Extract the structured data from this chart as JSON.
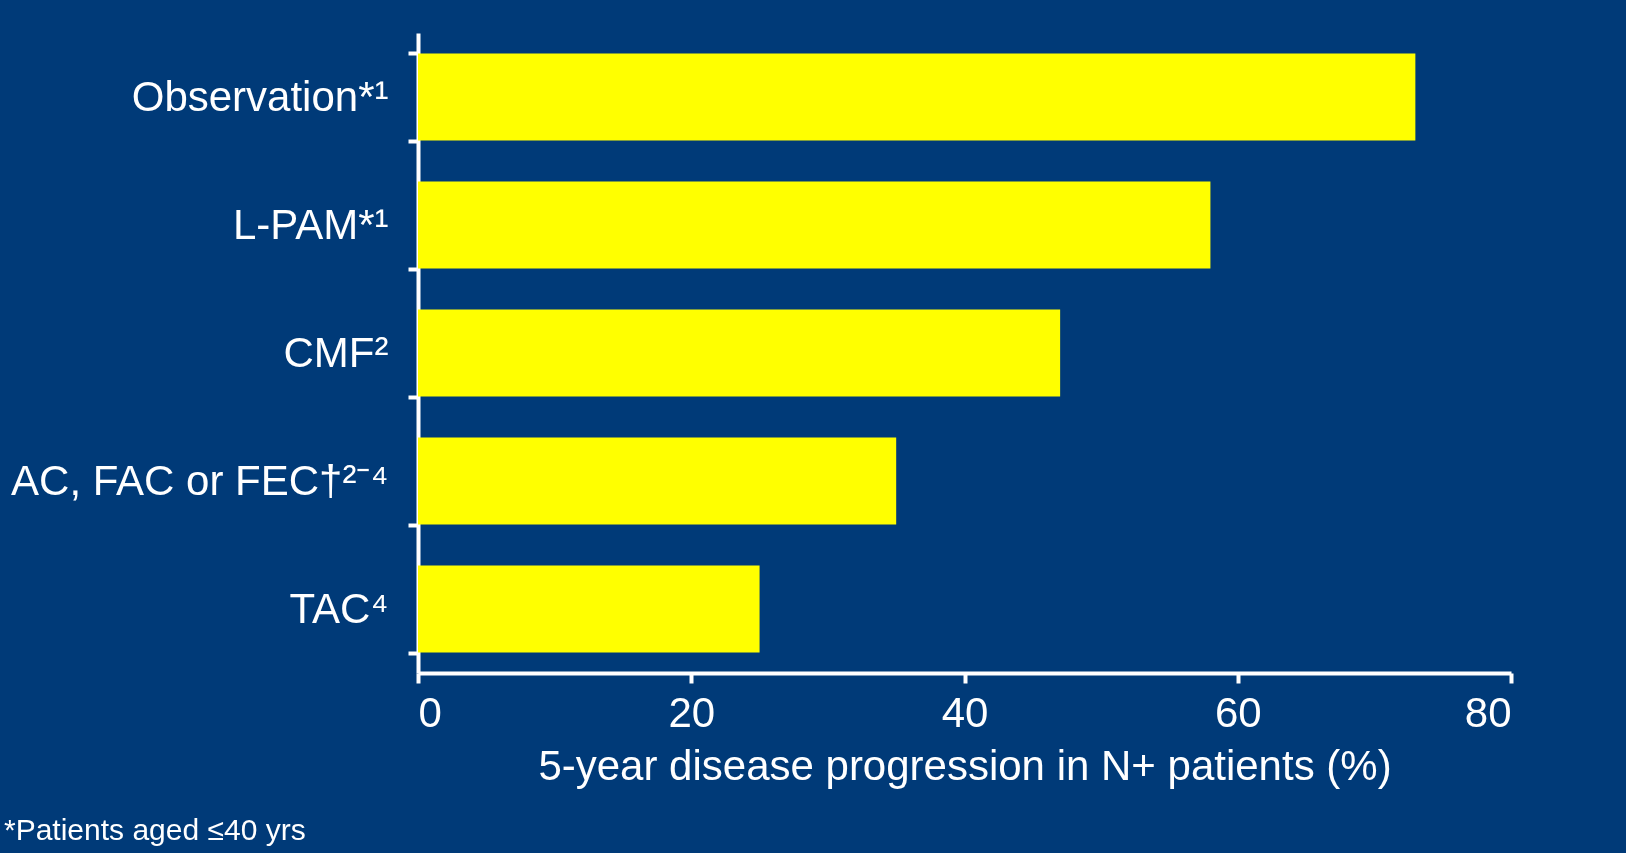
{
  "chart_data": {
    "type": "bar",
    "orientation": "horizontal",
    "categories": [
      "Observation*¹",
      "L-PAM*¹",
      "CMF²",
      "AC, FAC or FEC†²⁻⁴",
      "TAC⁴"
    ],
    "values": [
      73,
      58,
      47,
      35,
      25
    ],
    "color": "#ffff00",
    "xlabel": "5-year disease progression in N+ patients (%)",
    "xlim": [
      0,
      80
    ],
    "xticks": [
      0,
      20,
      40,
      60,
      80
    ],
    "annotations": [
      "*Patients aged ≤40 yrs"
    ]
  }
}
